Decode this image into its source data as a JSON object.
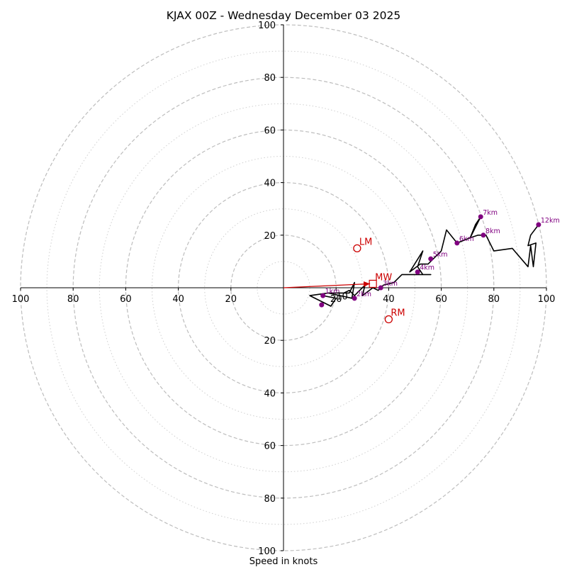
{
  "chart_data": {
    "type": "hodograph",
    "title": "KJAX 00Z - Wednesday December 03 2025",
    "xlabel": "Speed in knots",
    "units": "knots",
    "max_speed": 100,
    "ring_major_step": 20,
    "ring_minor_step": 10,
    "axis_tick_values": [
      20,
      40,
      60,
      80,
      100
    ],
    "hodograph_trace": [
      [
        15,
        -3
      ],
      [
        20,
        -4
      ],
      [
        18,
        -7
      ],
      [
        10,
        -3
      ],
      [
        17,
        -2
      ],
      [
        26,
        -4
      ],
      [
        27,
        2
      ],
      [
        25,
        -2
      ],
      [
        17,
        -2
      ],
      [
        23,
        -2
      ],
      [
        25,
        -1
      ],
      [
        27,
        -3
      ],
      [
        31,
        1
      ],
      [
        30,
        -3
      ],
      [
        34,
        0
      ],
      [
        36,
        -1
      ],
      [
        37,
        0
      ],
      [
        38,
        1
      ],
      [
        42,
        2
      ],
      [
        45,
        5
      ],
      [
        48,
        5
      ],
      [
        50,
        5
      ],
      [
        56,
        5
      ],
      [
        53,
        5
      ],
      [
        51,
        8
      ],
      [
        53,
        14
      ],
      [
        48,
        6
      ],
      [
        52,
        9
      ],
      [
        55,
        9
      ],
      [
        60,
        14
      ],
      [
        62,
        22
      ],
      [
        66,
        17
      ],
      [
        71,
        19
      ],
      [
        73,
        24
      ],
      [
        75,
        27
      ],
      [
        73,
        23
      ],
      [
        71,
        19
      ],
      [
        74,
        20
      ],
      [
        77,
        20
      ],
      [
        80,
        14
      ],
      [
        87,
        15
      ],
      [
        93,
        8
      ],
      [
        94,
        16
      ],
      [
        95,
        8
      ],
      [
        96,
        17
      ],
      [
        93,
        16
      ],
      [
        94,
        20
      ],
      [
        97,
        24
      ]
    ],
    "height_markers": [
      {
        "label": "1km",
        "u": 15,
        "v": -3
      },
      {
        "label": "2km",
        "u": 27,
        "v": -4
      },
      {
        "label": "3km",
        "u": 37,
        "v": 0
      },
      {
        "label": "4km",
        "u": 51,
        "v": 6
      },
      {
        "label": "5km",
        "u": 56,
        "v": 11
      },
      {
        "label": "6km",
        "u": 66,
        "v": 17
      },
      {
        "label": "7km",
        "u": 75,
        "v": 27
      },
      {
        "label": "8km",
        "u": 76,
        "v": 20
      },
      {
        "label": "12km",
        "u": 97,
        "v": 24
      },
      {
        "label": "",
        "u": 14.5,
        "v": -6.5
      }
    ],
    "storm_motion": [
      {
        "label": "LM",
        "u": 28,
        "v": 15,
        "marker": "circle"
      },
      {
        "label": "MW",
        "u": 34,
        "v": 1.5,
        "marker": "square"
      },
      {
        "label": "RM",
        "u": 40,
        "v": -12,
        "marker": "circle"
      }
    ],
    "stray_labels": [
      {
        "text": "10",
        "u": 20,
        "v": -4.5
      }
    ],
    "colors": {
      "trace": "#000000",
      "marker": "#800080",
      "storm": "#cc0000",
      "ring_major": "#bdbdbd",
      "ring_minor": "#cfcfcf",
      "axis": "#000000",
      "text": "#000000"
    }
  }
}
